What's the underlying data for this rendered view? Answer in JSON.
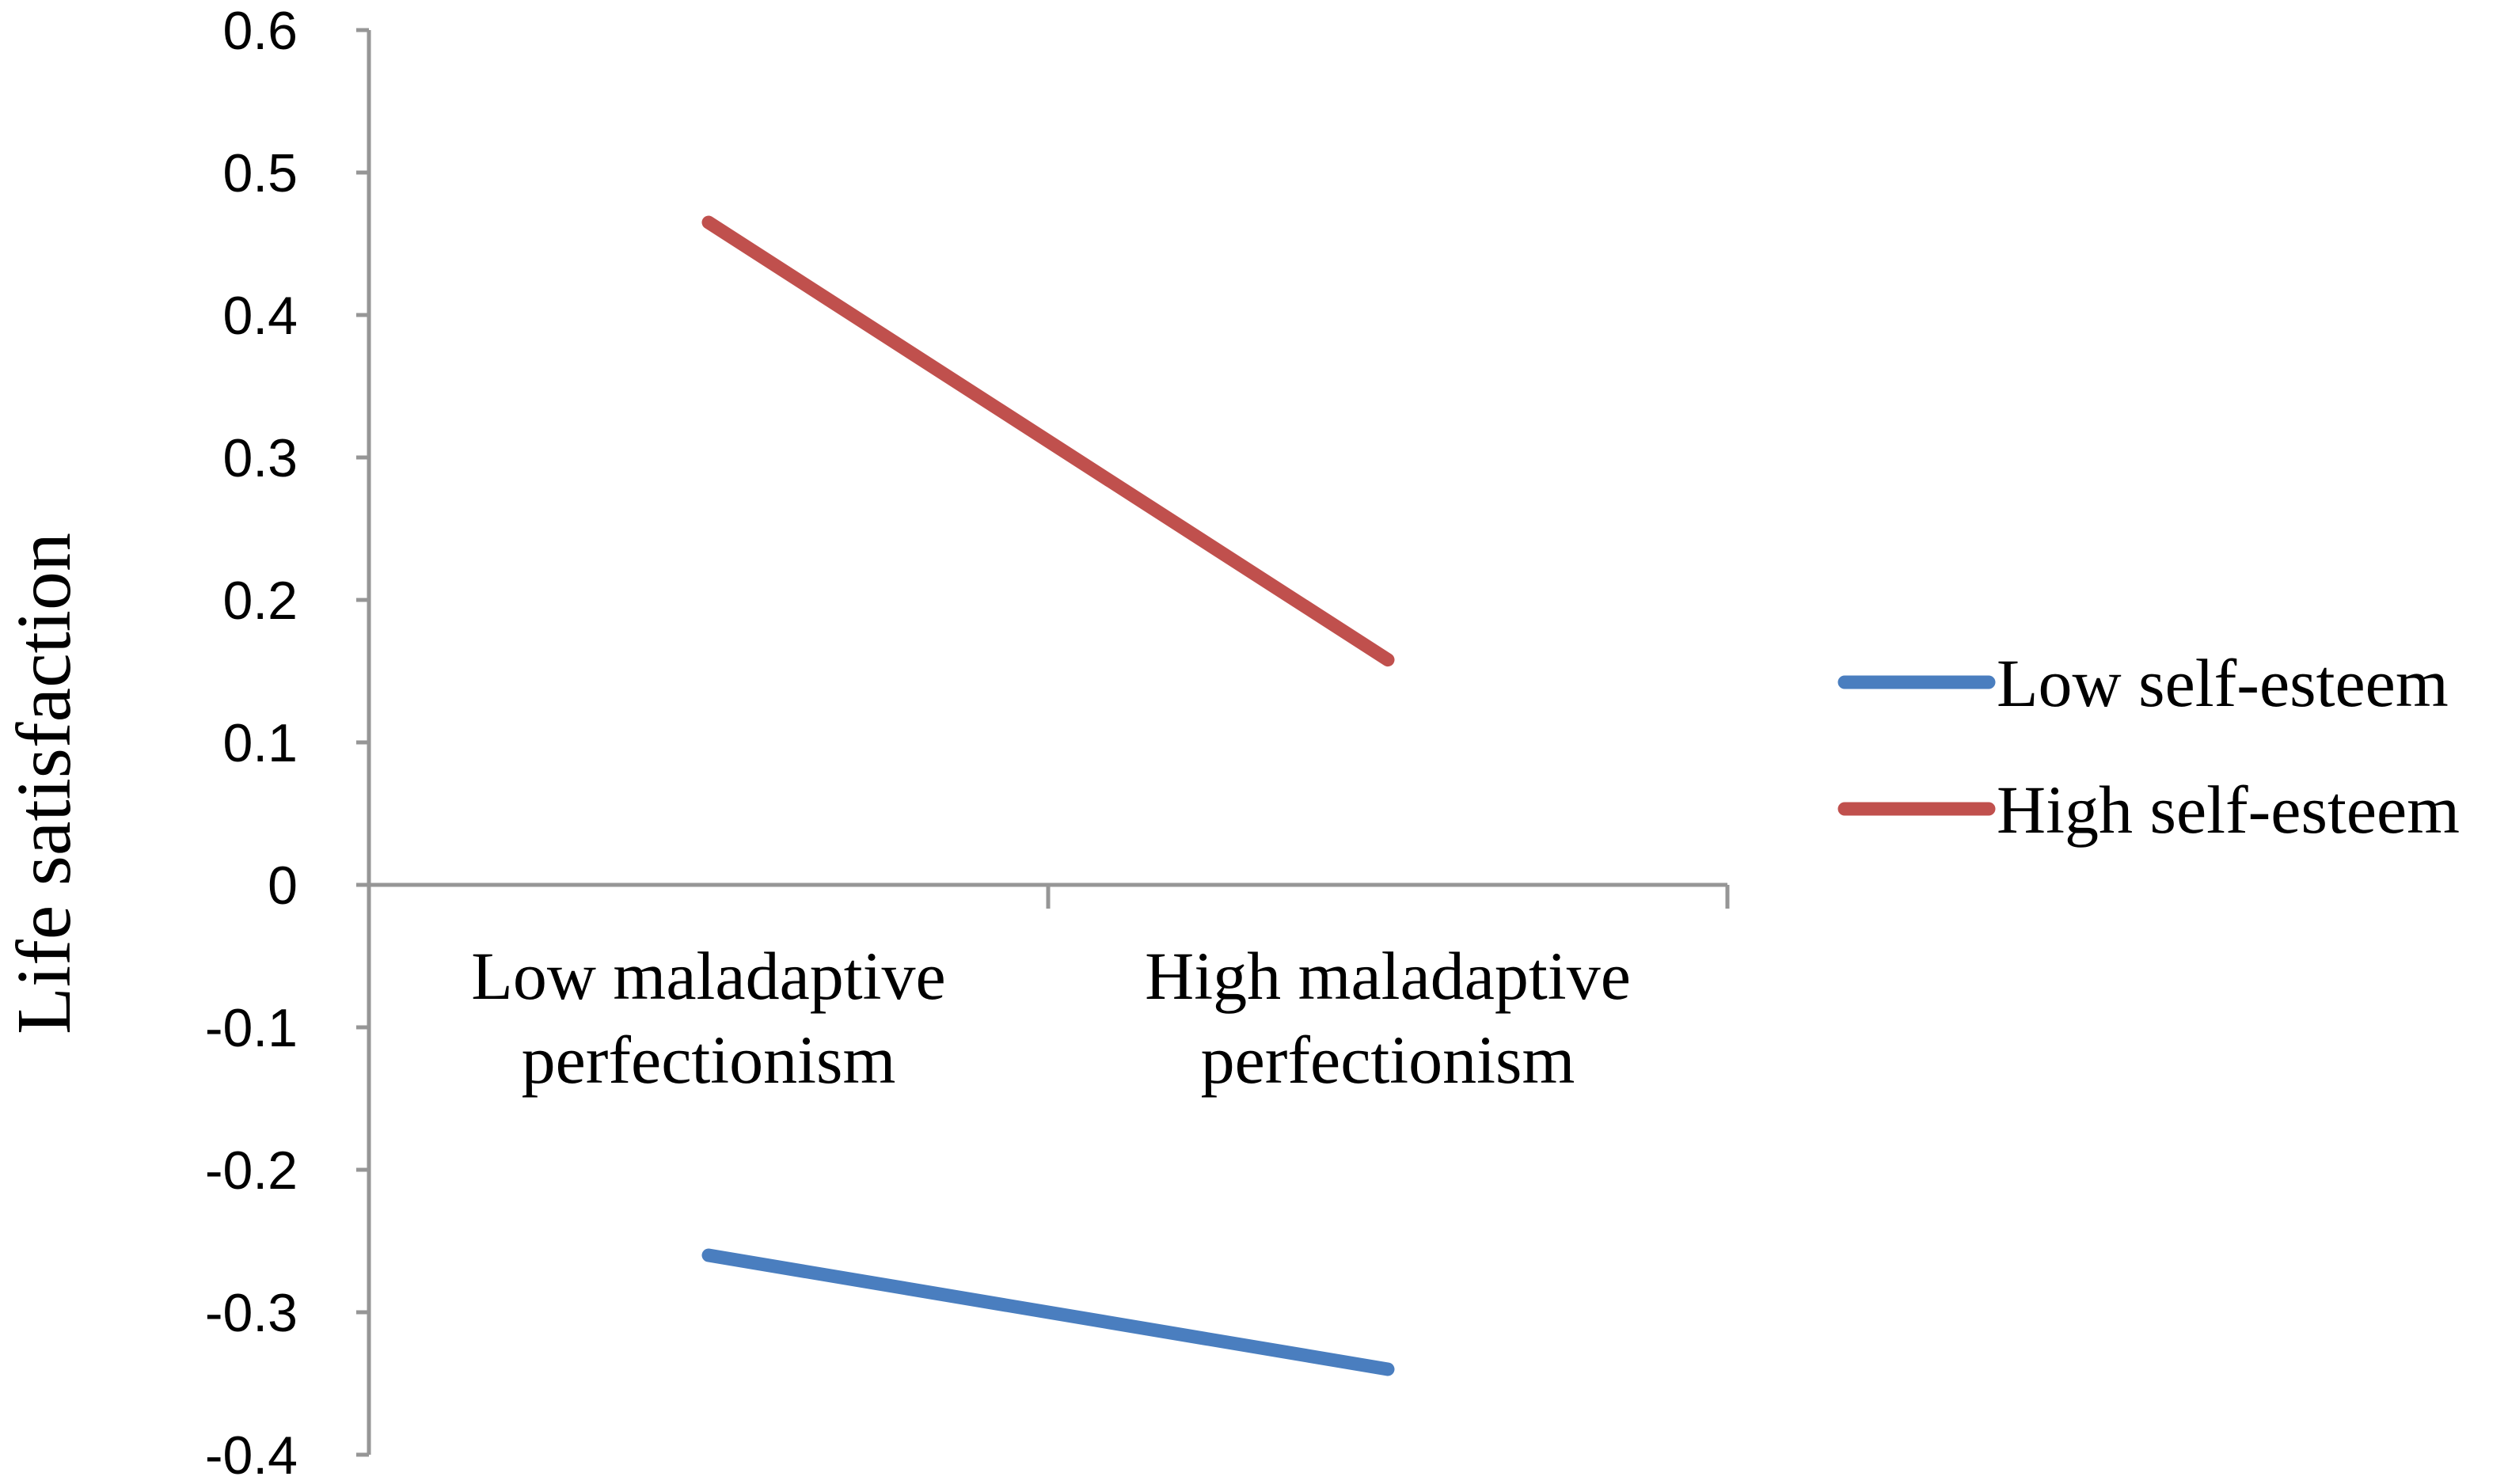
{
  "chart_data": {
    "type": "line",
    "title": "",
    "xlabel": "",
    "ylabel": "Life satisfaction",
    "categories": [
      [
        "Low maladaptive",
        "perfectionism"
      ],
      [
        "High maladaptive",
        "perfectionism"
      ]
    ],
    "ylim": [
      -0.4,
      0.6
    ],
    "yticks": [
      0.6,
      0.5,
      0.4,
      0.3,
      0.2,
      0.1,
      0,
      -0.1,
      -0.2,
      -0.3,
      -0.4
    ],
    "ytick_labels": [
      "0.6",
      "0.5",
      "0.4",
      "0.3",
      "0.2",
      "0.1",
      "0",
      "-0.1",
      "-0.2",
      "-0.3",
      "-0.4"
    ],
    "grid": false,
    "legend_position": "right",
    "series": [
      {
        "name": "Low self-esteem",
        "values": [
          -0.26,
          -0.34
        ],
        "color": "#4a7ebf"
      },
      {
        "name": "High self-esteem",
        "values": [
          0.465,
          0.158
        ],
        "color": "#c0504d"
      }
    ]
  }
}
